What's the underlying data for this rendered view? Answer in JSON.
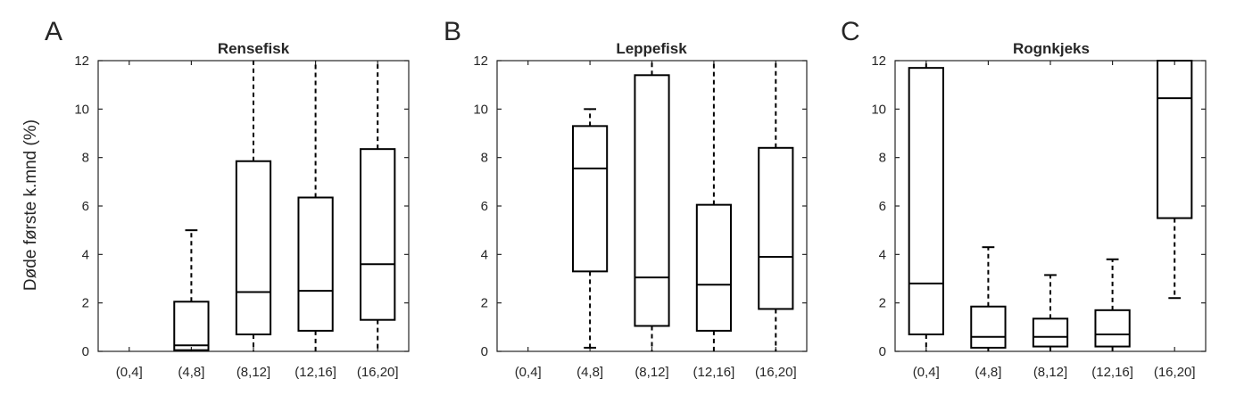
{
  "figure": {
    "ylabel": "Døde første k.mnd (%)"
  },
  "chart_data": [
    {
      "type": "box",
      "panel_letter": "A",
      "title": "Rensefisk",
      "categories": [
        "(0,4]",
        "(4,8]",
        "(8,12]",
        "(12,16]",
        "(16,20]"
      ],
      "ylim": [
        0,
        12
      ],
      "yticks": [
        0,
        2,
        4,
        6,
        8,
        10,
        12
      ],
      "boxes": [
        null,
        {
          "whisker_low": 0,
          "q1": 0.05,
          "median": 0.25,
          "q3": 2.05,
          "whisker_high": 5.0
        },
        {
          "whisker_low": 0,
          "q1": 0.7,
          "median": 2.45,
          "q3": 7.85,
          "whisker_high": 12
        },
        {
          "whisker_low": 0,
          "q1": 0.85,
          "median": 2.5,
          "q3": 6.35,
          "whisker_high": 12
        },
        {
          "whisker_low": 0,
          "q1": 1.3,
          "median": 3.6,
          "q3": 8.35,
          "whisker_high": 12
        }
      ]
    },
    {
      "type": "box",
      "panel_letter": "B",
      "title": "Leppefisk",
      "categories": [
        "(0,4]",
        "(4,8]",
        "(8,12]",
        "(12,16]",
        "(16,20]"
      ],
      "ylim": [
        0,
        12
      ],
      "yticks": [
        0,
        2,
        4,
        6,
        8,
        10,
        12
      ],
      "boxes": [
        null,
        {
          "whisker_low": 0.15,
          "q1": 3.3,
          "median": 7.55,
          "q3": 9.3,
          "whisker_high": 10.0
        },
        {
          "whisker_low": 0,
          "q1": 1.05,
          "median": 3.05,
          "q3": 11.4,
          "whisker_high": 12
        },
        {
          "whisker_low": 0,
          "q1": 0.85,
          "median": 2.75,
          "q3": 6.05,
          "whisker_high": 12
        },
        {
          "whisker_low": 0,
          "q1": 1.75,
          "median": 3.9,
          "q3": 8.4,
          "whisker_high": 12
        }
      ]
    },
    {
      "type": "box",
      "panel_letter": "C",
      "title": "Rognkjeks",
      "categories": [
        "(0,4]",
        "(4,8]",
        "(8,12]",
        "(12,16]",
        "(16,20]"
      ],
      "ylim": [
        0,
        12
      ],
      "yticks": [
        0,
        2,
        4,
        6,
        8,
        10,
        12
      ],
      "boxes": [
        {
          "whisker_low": 0,
          "q1": 0.7,
          "median": 2.8,
          "q3": 11.7,
          "whisker_high": 12
        },
        {
          "whisker_low": 0,
          "q1": 0.15,
          "median": 0.6,
          "q3": 1.85,
          "whisker_high": 4.3
        },
        {
          "whisker_low": 0,
          "q1": 0.2,
          "median": 0.6,
          "q3": 1.35,
          "whisker_high": 3.15
        },
        {
          "whisker_low": 0,
          "q1": 0.2,
          "median": 0.7,
          "q3": 1.7,
          "whisker_high": 3.8
        },
        {
          "whisker_low": 2.2,
          "q1": 5.5,
          "median": 10.45,
          "q3": 12,
          "whisker_high": 12
        }
      ]
    }
  ]
}
